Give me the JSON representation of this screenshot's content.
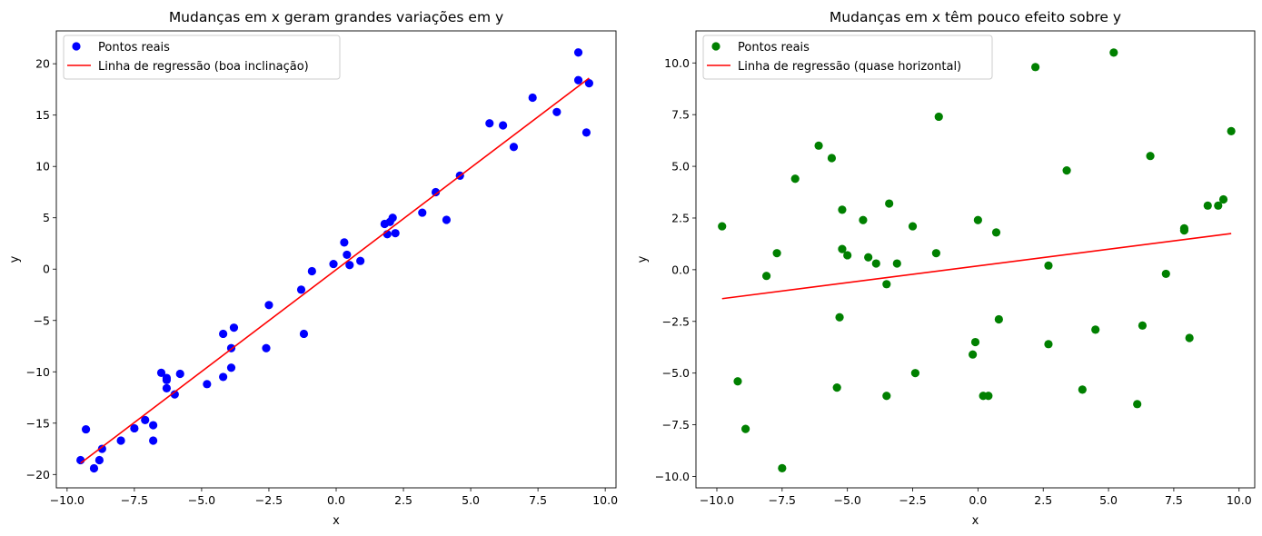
{
  "chart_data": [
    {
      "type": "scatter",
      "title": "Mudanças em x geram grandes variações em y",
      "xlabel": "x",
      "ylabel": "y",
      "xlim": [
        -10.4,
        10.4
      ],
      "ylim": [
        -21.3,
        23.2
      ],
      "xticks": [
        -10.0,
        -7.5,
        -5.0,
        -2.5,
        0.0,
        2.5,
        5.0,
        7.5,
        10.0
      ],
      "xtick_labels": [
        "−10.0",
        "−7.5",
        "−5.0",
        "−2.5",
        "0.0",
        "2.5",
        "5.0",
        "7.5",
        "10.0"
      ],
      "yticks": [
        -20,
        -15,
        -10,
        -5,
        0,
        5,
        10,
        15,
        20
      ],
      "ytick_labels": [
        "−20",
        "−15",
        "−10",
        "−5",
        "0",
        "5",
        "10",
        "15",
        "20"
      ],
      "grid": false,
      "legend_position": "top-left",
      "scatter": {
        "name": "Pontos reais",
        "color": "#0000ff",
        "points": [
          [
            -9.5,
            -18.6
          ],
          [
            -9.3,
            -15.6
          ],
          [
            -9.0,
            -19.4
          ],
          [
            -8.8,
            -18.6
          ],
          [
            -8.7,
            -17.5
          ],
          [
            -8.0,
            -16.7
          ],
          [
            -7.5,
            -15.5
          ],
          [
            -7.1,
            -14.7
          ],
          [
            -6.8,
            -16.7
          ],
          [
            -6.8,
            -15.2
          ],
          [
            -6.5,
            -10.1
          ],
          [
            -6.3,
            -10.6
          ],
          [
            -6.3,
            -10.8
          ],
          [
            -6.3,
            -11.6
          ],
          [
            -6.0,
            -12.2
          ],
          [
            -5.8,
            -10.2
          ],
          [
            -4.8,
            -11.2
          ],
          [
            -4.2,
            -6.3
          ],
          [
            -4.2,
            -10.5
          ],
          [
            -3.9,
            -9.6
          ],
          [
            -3.9,
            -7.7
          ],
          [
            -3.8,
            -5.7
          ],
          [
            -2.6,
            -7.7
          ],
          [
            -2.5,
            -3.5
          ],
          [
            -1.3,
            -2.0
          ],
          [
            -1.2,
            -6.3
          ],
          [
            -0.9,
            -0.2
          ],
          [
            -0.1,
            0.5
          ],
          [
            0.3,
            2.6
          ],
          [
            0.4,
            1.4
          ],
          [
            0.5,
            0.4
          ],
          [
            0.9,
            0.8
          ],
          [
            1.8,
            4.4
          ],
          [
            1.9,
            3.4
          ],
          [
            2.0,
            4.6
          ],
          [
            2.1,
            5.0
          ],
          [
            2.2,
            3.5
          ],
          [
            3.2,
            5.5
          ],
          [
            3.7,
            7.5
          ],
          [
            4.1,
            4.8
          ],
          [
            4.6,
            9.1
          ],
          [
            5.7,
            14.2
          ],
          [
            6.2,
            14.0
          ],
          [
            6.6,
            11.9
          ],
          [
            7.3,
            16.7
          ],
          [
            8.2,
            15.3
          ],
          [
            9.0,
            21.1
          ],
          [
            9.0,
            18.4
          ],
          [
            9.3,
            13.3
          ],
          [
            9.4,
            18.1
          ]
        ]
      },
      "regression": {
        "name": "Linha de regressão (boa inclinação)",
        "color": "#ff0000",
        "x": [
          -9.5,
          9.4
        ],
        "y": [
          -18.9,
          18.6
        ]
      }
    },
    {
      "type": "scatter",
      "title": "Mudanças em x têm pouco efeito sobre y",
      "xlabel": "x",
      "ylabel": "y",
      "xlim": [
        -10.8,
        10.6
      ],
      "ylim": [
        -10.55,
        11.55
      ],
      "xticks": [
        -10.0,
        -7.5,
        -5.0,
        -2.5,
        0.0,
        2.5,
        5.0,
        7.5,
        10.0
      ],
      "xtick_labels": [
        "−10.0",
        "−7.5",
        "−5.0",
        "−2.5",
        "0.0",
        "2.5",
        "5.0",
        "7.5",
        "10.0"
      ],
      "yticks": [
        -10.0,
        -7.5,
        -5.0,
        -2.5,
        0.0,
        2.5,
        5.0,
        7.5,
        10.0
      ],
      "ytick_labels": [
        "−10.0",
        "−7.5",
        "−5.0",
        "−2.5",
        "0.0",
        "2.5",
        "5.0",
        "7.5",
        "10.0"
      ],
      "grid": false,
      "legend_position": "top-left",
      "scatter": {
        "name": "Pontos reais",
        "color": "#008000",
        "points": [
          [
            -9.8,
            2.1
          ],
          [
            -9.2,
            -5.4
          ],
          [
            -8.9,
            -7.7
          ],
          [
            -8.1,
            -0.3
          ],
          [
            -7.7,
            0.8
          ],
          [
            -7.5,
            -9.6
          ],
          [
            -7.0,
            4.4
          ],
          [
            -6.1,
            6.0
          ],
          [
            -5.6,
            5.4
          ],
          [
            -5.3,
            -2.3
          ],
          [
            -5.2,
            1.0
          ],
          [
            -5.4,
            -5.7
          ],
          [
            -5.2,
            2.9
          ],
          [
            -5.0,
            0.7
          ],
          [
            -4.4,
            2.4
          ],
          [
            -4.2,
            0.6
          ],
          [
            -3.9,
            0.3
          ],
          [
            -3.5,
            -0.7
          ],
          [
            -3.5,
            -6.1
          ],
          [
            -3.4,
            3.2
          ],
          [
            -3.1,
            0.3
          ],
          [
            -2.5,
            2.1
          ],
          [
            -2.4,
            -5.0
          ],
          [
            -1.6,
            0.8
          ],
          [
            -1.5,
            7.4
          ],
          [
            -0.2,
            -4.1
          ],
          [
            -0.1,
            -3.5
          ],
          [
            0.0,
            2.4
          ],
          [
            0.2,
            -6.1
          ],
          [
            0.4,
            -6.1
          ],
          [
            0.7,
            1.8
          ],
          [
            0.8,
            -2.4
          ],
          [
            2.2,
            9.8
          ],
          [
            2.7,
            0.2
          ],
          [
            2.7,
            -3.6
          ],
          [
            3.4,
            4.8
          ],
          [
            4.0,
            -5.8
          ],
          [
            4.5,
            -2.9
          ],
          [
            5.2,
            10.5
          ],
          [
            6.1,
            -6.5
          ],
          [
            6.3,
            -2.7
          ],
          [
            6.6,
            5.5
          ],
          [
            7.2,
            -0.2
          ],
          [
            7.9,
            2.0
          ],
          [
            7.9,
            1.9
          ],
          [
            8.1,
            -3.3
          ],
          [
            8.8,
            3.1
          ],
          [
            9.2,
            3.1
          ],
          [
            9.4,
            3.4
          ],
          [
            9.7,
            6.7
          ]
        ]
      },
      "regression": {
        "name": "Linha de regressão (quase horizontal)",
        "color": "#ff0000",
        "x": [
          -9.8,
          9.7
        ],
        "y": [
          -1.4,
          1.75
        ]
      }
    }
  ]
}
